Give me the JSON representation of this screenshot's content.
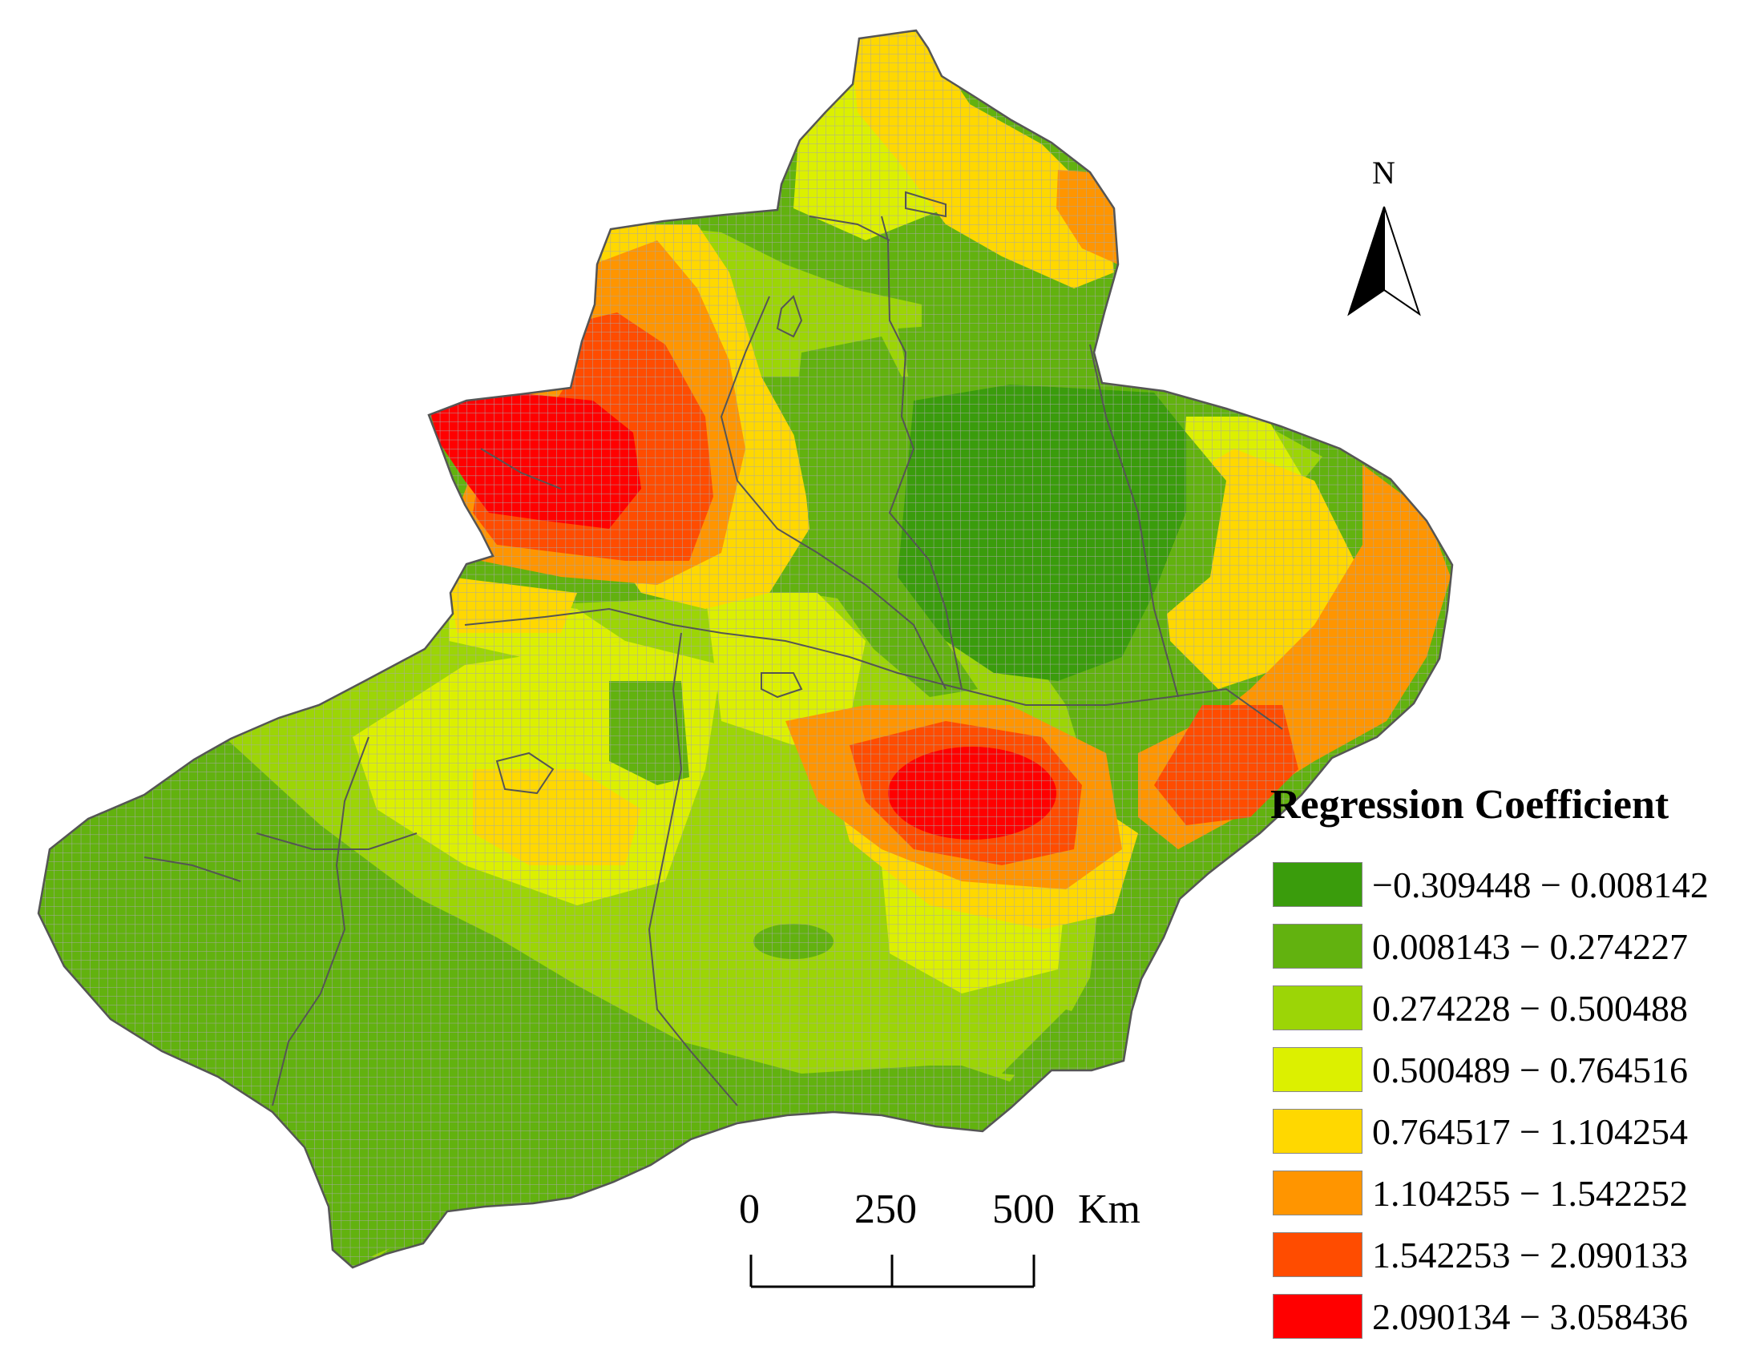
{
  "north_label": "N",
  "legend": {
    "title": "Regression Coefficient",
    "classes": [
      {
        "label": "−0.309448 − 0.008142",
        "color": "#3a9c0c",
        "min": -0.309448,
        "max": 0.008142
      },
      {
        "label": "0.008143 − 0.274227",
        "color": "#62b20f",
        "min": 0.008143,
        "max": 0.274227
      },
      {
        "label": "0.274228 − 0.500488",
        "color": "#9cd506",
        "min": 0.274228,
        "max": 0.500488
      },
      {
        "label": "0.500489 − 0.764516",
        "color": "#dcf000",
        "min": 0.500489,
        "max": 0.764516
      },
      {
        "label": "0.764517 − 1.104254",
        "color": "#ffd800",
        "min": 0.764517,
        "max": 1.104254
      },
      {
        "label": "1.104255 − 1.542252",
        "color": "#ff9500",
        "min": 1.104255,
        "max": 1.542252
      },
      {
        "label": "1.542253 − 2.090133",
        "color": "#ff4c00",
        "min": 1.542253,
        "max": 2.090133
      },
      {
        "label": "2.090134 − 3.058436",
        "color": "#ff0000",
        "min": 2.090134,
        "max": 3.058436
      }
    ]
  },
  "scale_bar": {
    "labels": [
      "0",
      "250",
      "500"
    ],
    "unit": "Km"
  },
  "colors": {
    "grid_line": "#a8a8a8",
    "boundary": "#555555",
    "north_arrow": "#000000"
  }
}
